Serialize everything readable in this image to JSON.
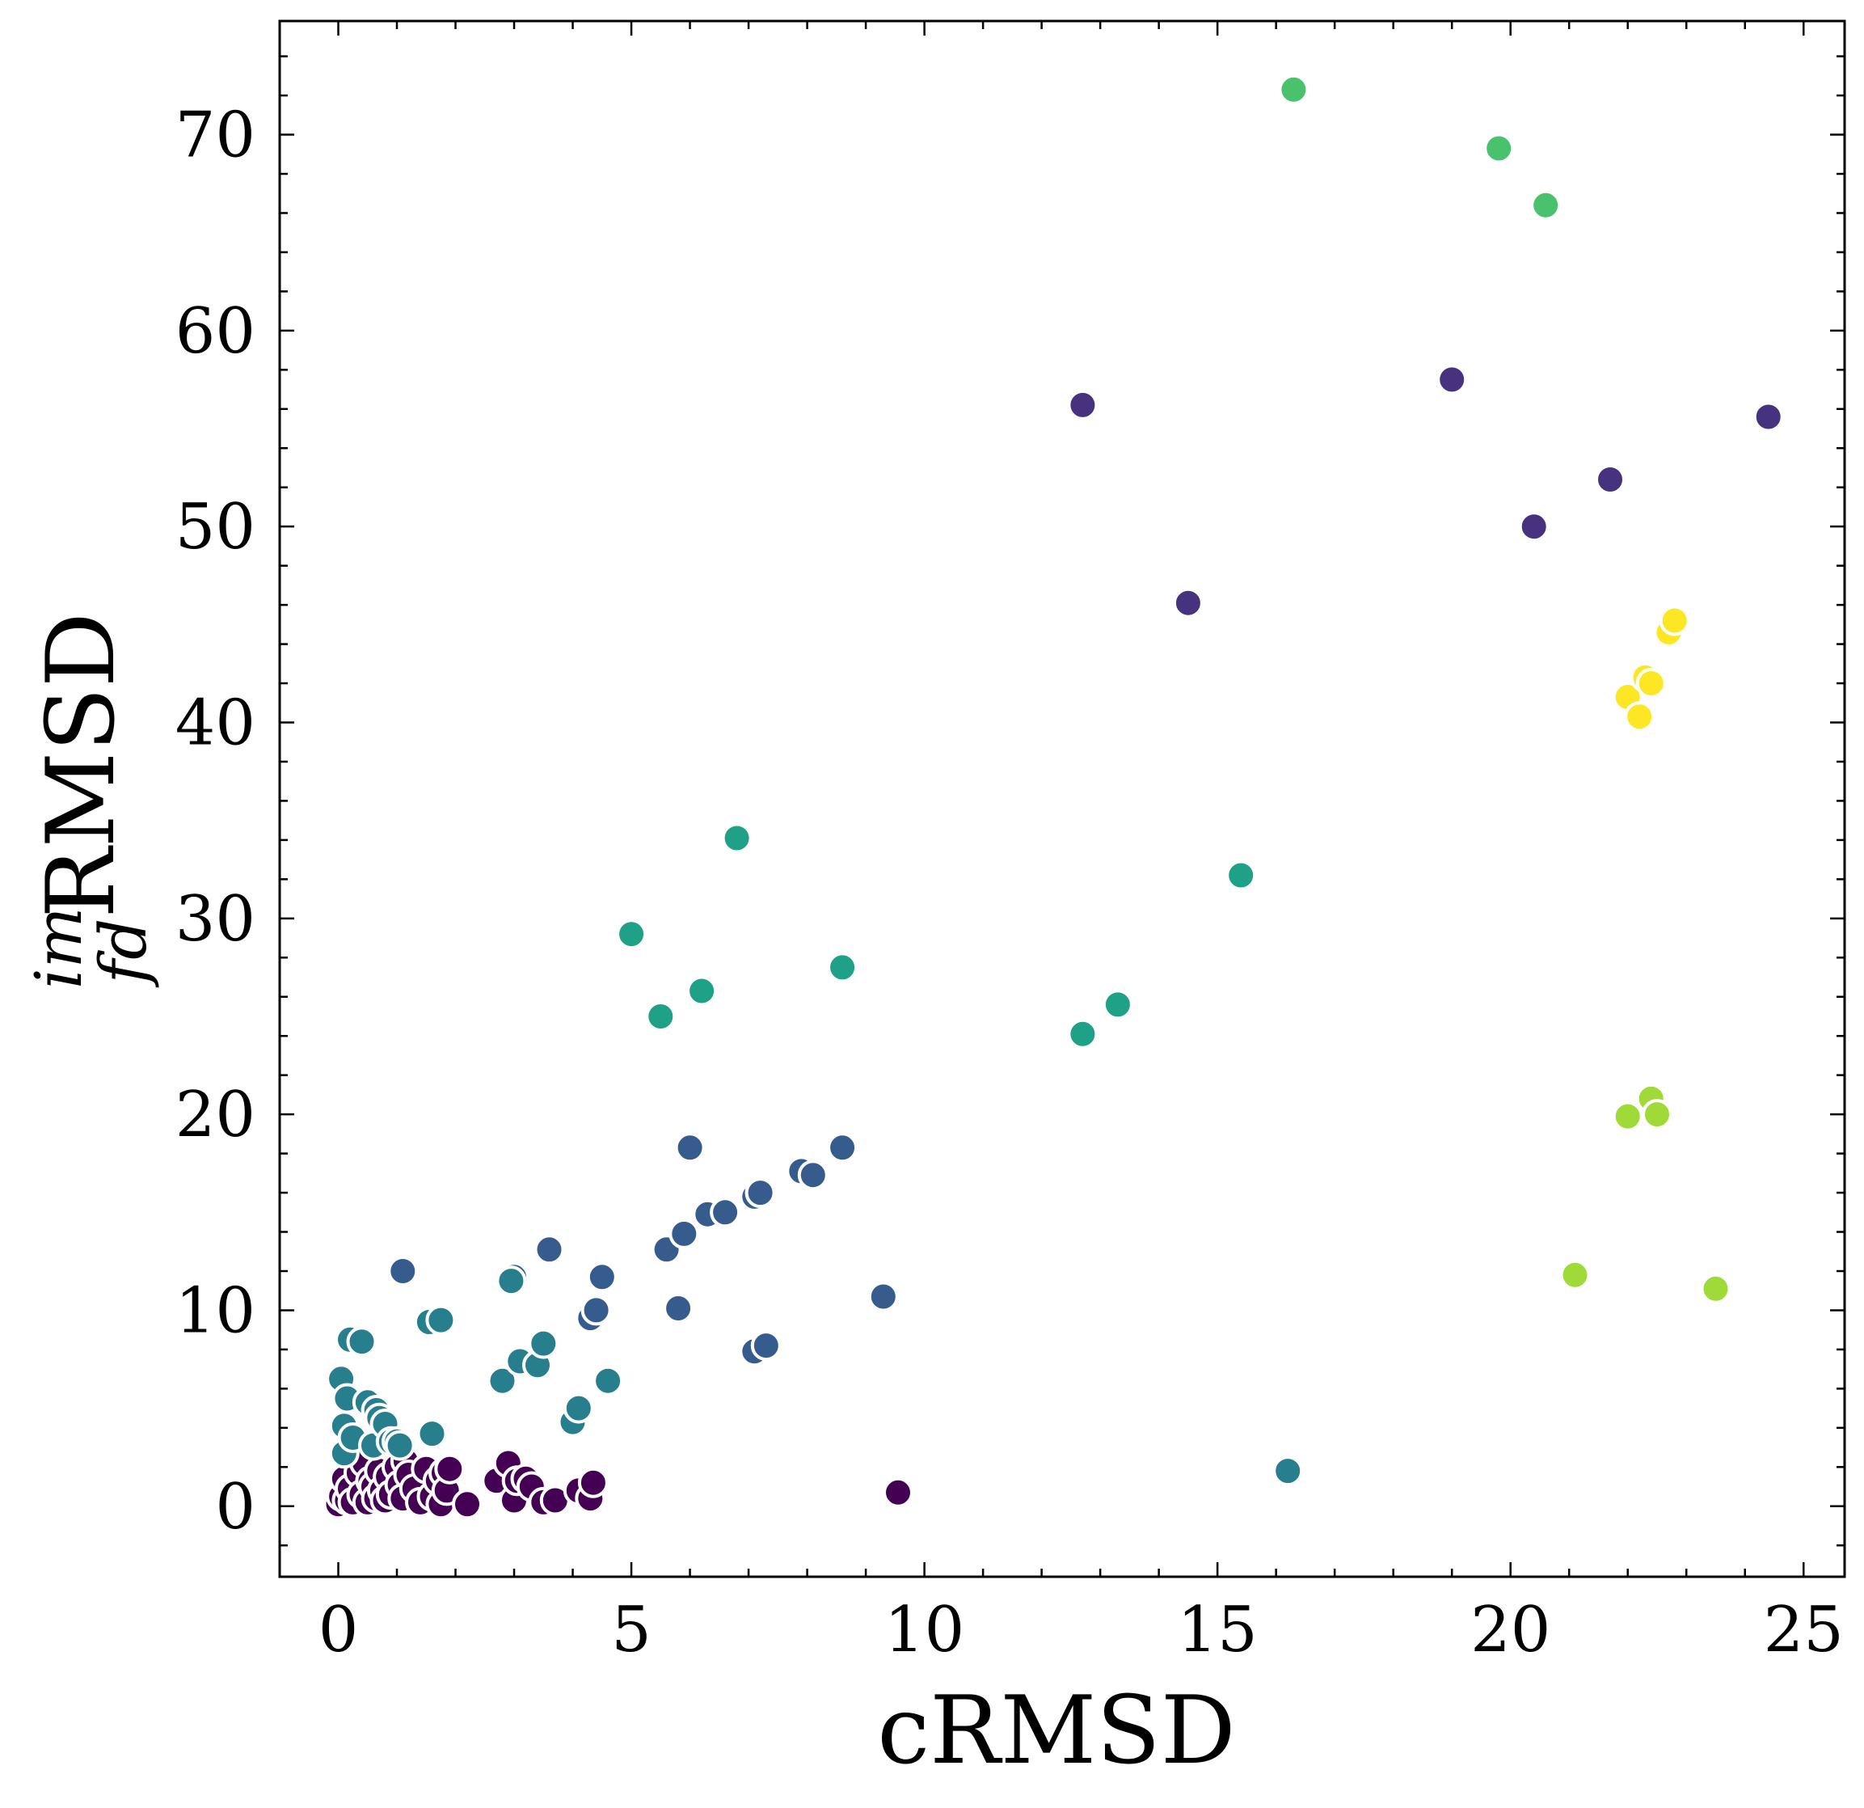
{
  "chart_data": {
    "type": "scatter",
    "xlabel": "cRMSD",
    "ylabel": {
      "superscript": "im",
      "subscript": "fd",
      "text": "RMSD"
    },
    "xlim": [
      -1,
      25.7
    ],
    "ylim": [
      -3.6,
      75.8
    ],
    "xticks": [
      0,
      5,
      10,
      15,
      20,
      25
    ],
    "yticks": [
      0,
      10,
      20,
      30,
      40,
      50,
      60,
      70
    ],
    "grid": false,
    "colormap": "viridis",
    "series": [
      {
        "color": "#440154",
        "points": [
          [
            0.0,
            0.1
          ],
          [
            0.05,
            0.5
          ],
          [
            0.1,
            1.4
          ],
          [
            0.15,
            0.3
          ],
          [
            0.2,
            0.9
          ],
          [
            0.25,
            0.2
          ],
          [
            0.3,
            2.4
          ],
          [
            0.35,
            1.7
          ],
          [
            0.4,
            0.6
          ],
          [
            0.45,
            2.2
          ],
          [
            0.5,
            0.2
          ],
          [
            0.55,
            1.3
          ],
          [
            0.6,
            1.0
          ],
          [
            0.65,
            0.4
          ],
          [
            0.7,
            1.8
          ],
          [
            0.75,
            0.8
          ],
          [
            0.8,
            0.3
          ],
          [
            0.85,
            1.5
          ],
          [
            0.9,
            0.6
          ],
          [
            1.0,
            2.0
          ],
          [
            1.05,
            1.1
          ],
          [
            1.1,
            0.4
          ],
          [
            1.15,
            2.3
          ],
          [
            1.2,
            1.6
          ],
          [
            1.3,
            0.9
          ],
          [
            1.4,
            0.2
          ],
          [
            1.5,
            1.9
          ],
          [
            1.6,
            0.5
          ],
          [
            1.7,
            1.3
          ],
          [
            1.75,
            0.1
          ],
          [
            1.8,
            1.7
          ],
          [
            1.85,
            0.8
          ],
          [
            1.9,
            1.9
          ],
          [
            2.2,
            0.1
          ],
          [
            2.7,
            1.3
          ],
          [
            2.9,
            2.2
          ],
          [
            3.0,
            0.3
          ],
          [
            3.05,
            1.3
          ],
          [
            3.2,
            1.4
          ],
          [
            3.3,
            1.0
          ],
          [
            3.5,
            0.2
          ],
          [
            3.7,
            0.3
          ],
          [
            4.1,
            0.8
          ],
          [
            4.3,
            0.4
          ],
          [
            4.35,
            1.2
          ],
          [
            9.55,
            0.7
          ]
        ]
      },
      {
        "color": "#46327e",
        "points": [
          [
            12.7,
            56.2
          ],
          [
            14.5,
            46.1
          ],
          [
            19.0,
            57.5
          ],
          [
            20.4,
            50.0
          ],
          [
            21.7,
            52.4
          ],
          [
            24.4,
            55.6
          ]
        ]
      },
      {
        "color": "#365c8d",
        "points": [
          [
            1.1,
            12.0
          ],
          [
            3.0,
            11.7
          ],
          [
            3.6,
            13.1
          ],
          [
            4.3,
            9.6
          ],
          [
            4.4,
            10.0
          ],
          [
            4.5,
            11.7
          ],
          [
            5.6,
            13.1
          ],
          [
            5.8,
            10.1
          ],
          [
            5.9,
            13.9
          ],
          [
            6.0,
            18.3
          ],
          [
            6.3,
            14.9
          ],
          [
            6.6,
            15.0
          ],
          [
            7.1,
            15.8
          ],
          [
            7.2,
            16.0
          ],
          [
            7.1,
            7.9
          ],
          [
            7.3,
            8.2
          ],
          [
            7.9,
            17.1
          ],
          [
            8.1,
            16.9
          ],
          [
            8.6,
            18.3
          ],
          [
            9.3,
            10.7
          ]
        ]
      },
      {
        "color": "#277f8e",
        "points": [
          [
            0.05,
            6.5
          ],
          [
            0.1,
            4.1
          ],
          [
            0.1,
            2.7
          ],
          [
            0.15,
            5.5
          ],
          [
            0.2,
            8.5
          ],
          [
            0.25,
            3.5
          ],
          [
            0.4,
            8.4
          ],
          [
            0.5,
            5.3
          ],
          [
            0.6,
            3.1
          ],
          [
            0.65,
            4.9
          ],
          [
            0.7,
            4.5
          ],
          [
            0.8,
            4.2
          ],
          [
            0.9,
            3.3
          ],
          [
            1.0,
            3.3
          ],
          [
            1.05,
            3.1
          ],
          [
            1.55,
            9.4
          ],
          [
            1.6,
            3.7
          ],
          [
            1.75,
            9.5
          ],
          [
            2.8,
            6.4
          ],
          [
            2.95,
            11.5
          ],
          [
            3.1,
            7.4
          ],
          [
            3.4,
            7.2
          ],
          [
            3.5,
            8.3
          ],
          [
            4.0,
            4.3
          ],
          [
            4.1,
            5.0
          ],
          [
            4.6,
            6.4
          ],
          [
            16.2,
            1.8
          ]
        ]
      },
      {
        "color": "#1fa187",
        "points": [
          [
            5.0,
            29.2
          ],
          [
            5.5,
            25.0
          ],
          [
            6.2,
            26.3
          ],
          [
            6.8,
            34.1
          ],
          [
            8.6,
            27.5
          ],
          [
            12.7,
            24.1
          ],
          [
            13.3,
            25.6
          ],
          [
            15.4,
            32.2
          ]
        ]
      },
      {
        "color": "#4ac16d",
        "points": [
          [
            16.3,
            72.3
          ],
          [
            19.8,
            69.3
          ],
          [
            20.6,
            66.4
          ]
        ]
      },
      {
        "color": "#a0da39",
        "points": [
          [
            21.1,
            11.8
          ],
          [
            22.0,
            19.9
          ],
          [
            22.4,
            20.8
          ],
          [
            22.5,
            20.0
          ],
          [
            23.5,
            11.1
          ]
        ]
      },
      {
        "color": "#fde725",
        "points": [
          [
            22.0,
            41.3
          ],
          [
            22.2,
            40.3
          ],
          [
            22.3,
            42.3
          ],
          [
            22.4,
            42.0
          ],
          [
            22.7,
            44.6
          ],
          [
            22.8,
            45.2
          ]
        ]
      }
    ]
  }
}
